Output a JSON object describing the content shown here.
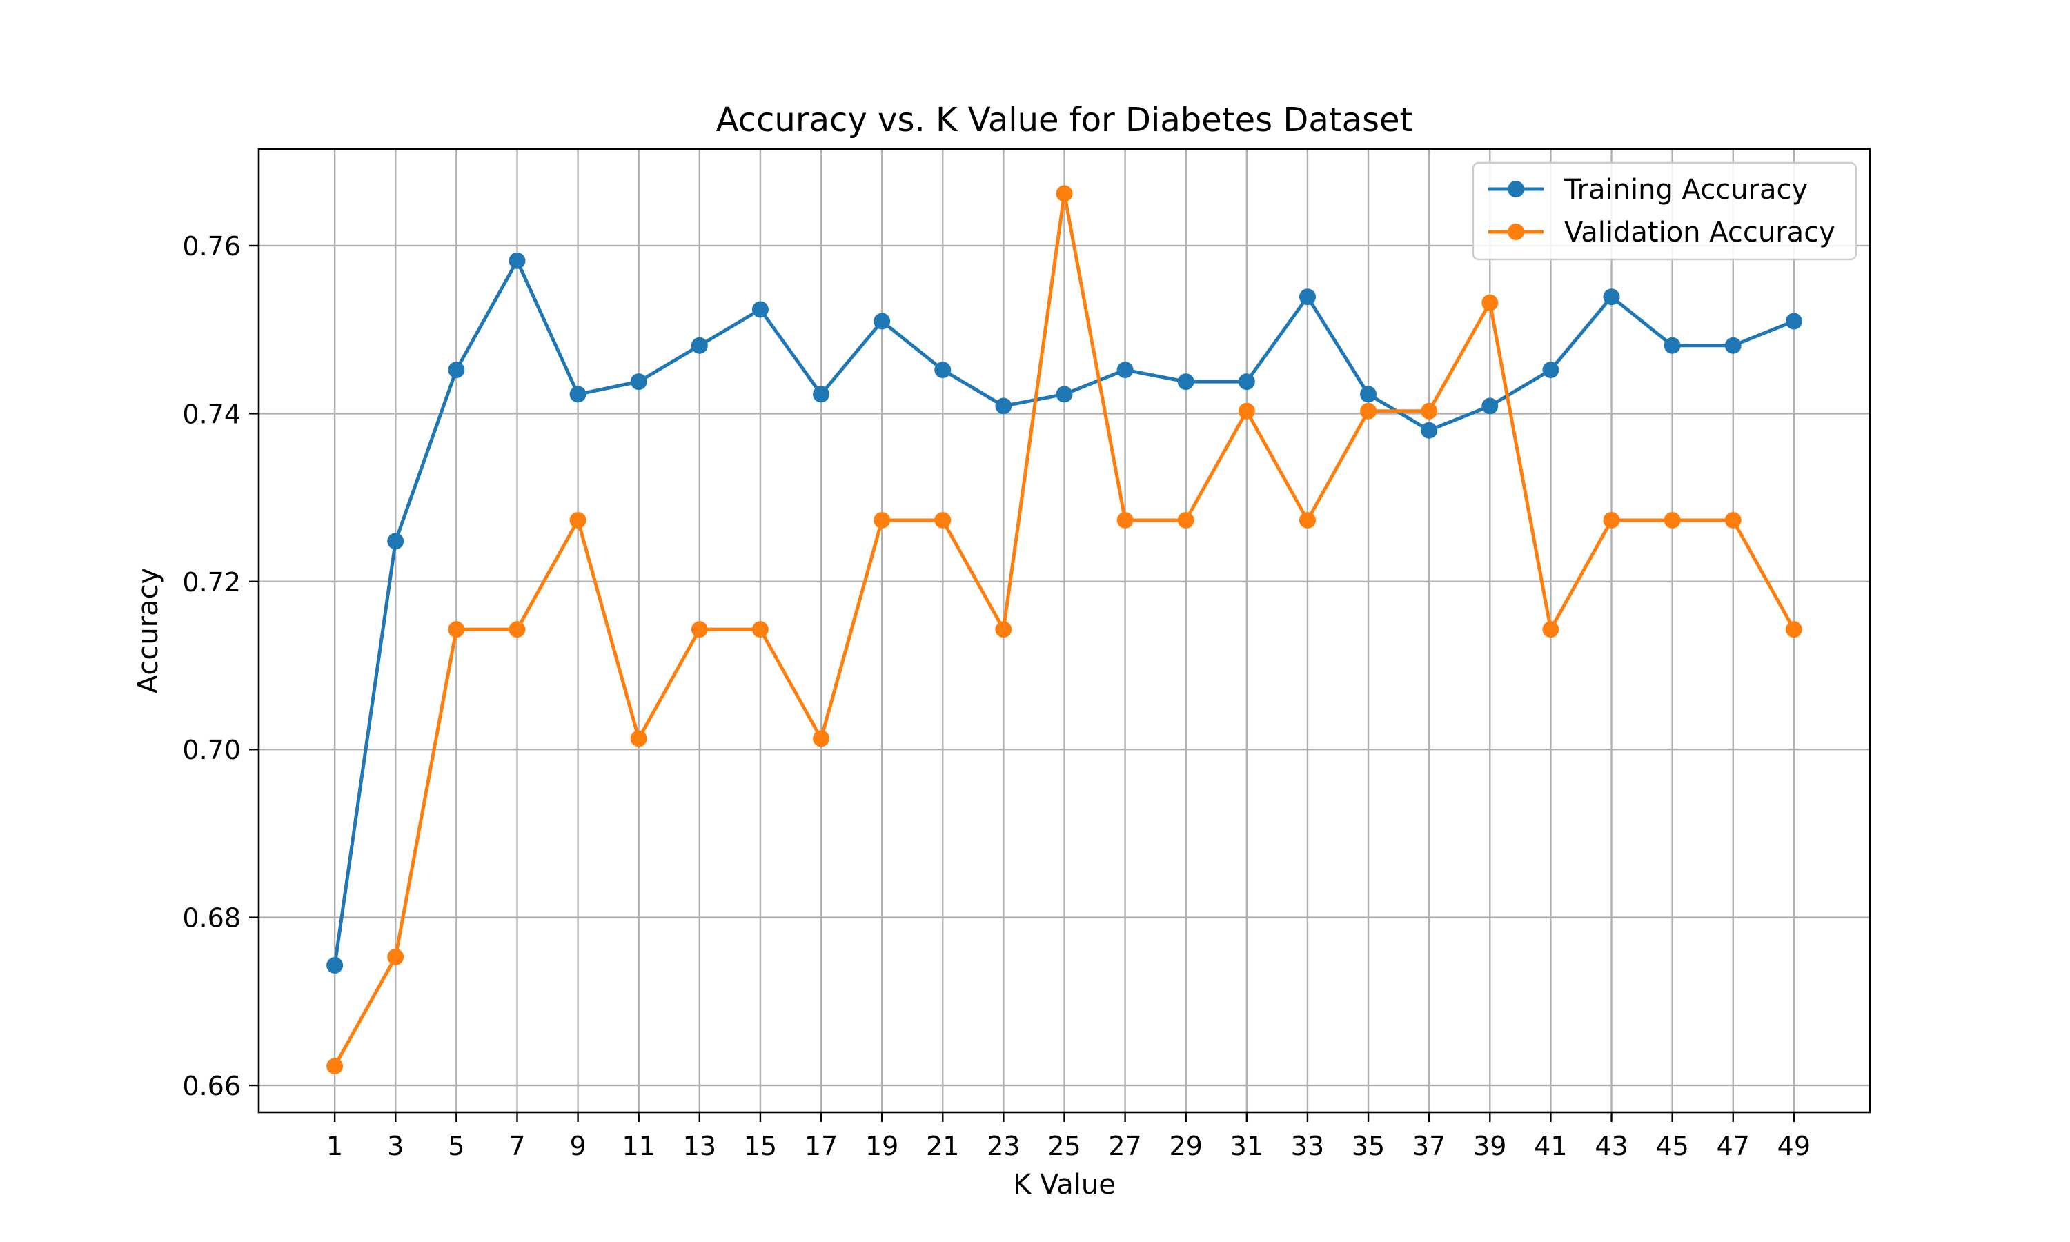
{
  "chart_data": {
    "type": "line",
    "title": "Accuracy vs. K Value for Diabetes Dataset",
    "xlabel": "K Value",
    "ylabel": "Accuracy",
    "x": [
      1,
      3,
      5,
      7,
      9,
      11,
      13,
      15,
      17,
      19,
      21,
      23,
      25,
      27,
      29,
      31,
      33,
      35,
      37,
      39,
      41,
      43,
      45,
      47,
      49
    ],
    "xticks": [
      1,
      3,
      5,
      7,
      9,
      11,
      13,
      15,
      17,
      19,
      21,
      23,
      25,
      27,
      29,
      31,
      33,
      35,
      37,
      39,
      41,
      43,
      45,
      47,
      49
    ],
    "xlim": [
      -1.5,
      51.5
    ],
    "ylim": [
      0.6568,
      0.7715
    ],
    "yticks": [
      0.66,
      0.68,
      0.7,
      0.72,
      0.74,
      0.76
    ],
    "ytick_labels": [
      "0.66",
      "0.68",
      "0.70",
      "0.72",
      "0.74",
      "0.76"
    ],
    "grid": true,
    "legend_position": "upper right",
    "series": [
      {
        "name": "Training Accuracy",
        "color": "#1f77b4",
        "marker": "circle",
        "values": [
          0.6743,
          0.7248,
          0.7452,
          0.7582,
          0.7423,
          0.7438,
          0.7481,
          0.7524,
          0.7423,
          0.751,
          0.7452,
          0.7409,
          0.7423,
          0.7452,
          0.7438,
          0.7438,
          0.7539,
          0.7423,
          0.738,
          0.7409,
          0.7452,
          0.7539,
          0.7481,
          0.7481,
          0.751
        ]
      },
      {
        "name": "Validation Accuracy",
        "color": "#ff7f0e",
        "marker": "circle",
        "values": [
          0.6623,
          0.6753,
          0.7143,
          0.7143,
          0.7273,
          0.7013,
          0.7143,
          0.7143,
          0.7013,
          0.7273,
          0.7273,
          0.7143,
          0.7662,
          0.7273,
          0.7273,
          0.7403,
          0.7273,
          0.7403,
          0.7403,
          0.7532,
          0.7143,
          0.7273,
          0.7273,
          0.7273,
          0.7143
        ]
      }
    ]
  }
}
